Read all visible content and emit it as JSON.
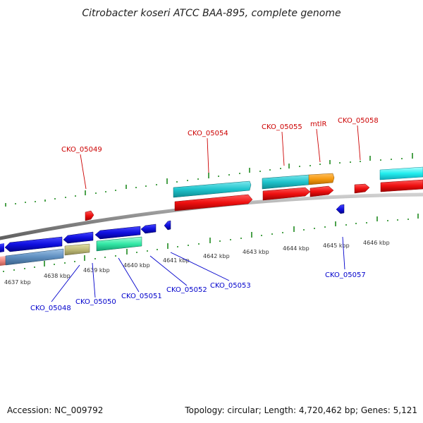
{
  "title": "Citrobacter koseri ATCC BAA-895, complete genome",
  "footer": {
    "accession": "Accession: NC_009792",
    "topology": "Topology: circular; Length: 4,720,462 bp; Genes: 5,121"
  },
  "colors": {
    "backbone": "#8a8a8a",
    "tick": "#1f8a1f",
    "top_label": "#cc0000",
    "bottom_label": "#0000cc",
    "leader_top": "#cc0000",
    "leader_bottom": "#0000cc"
  },
  "kbp_labels": [
    "4637 kbp",
    "4638 kbp",
    "4639 kbp",
    "4640 kbp",
    "4641 kbp",
    "4642 kbp",
    "4643 kbp",
    "4644 kbp",
    "4645 kbp",
    "4646 kbp"
  ],
  "top_labels": [
    "CKO_05049",
    "CKO_05054",
    "CKO_05055",
    "mtlR",
    "CKO_05058"
  ],
  "bottom_labels": [
    "CKO_05048",
    "CKO_05050",
    "CKO_05051",
    "CKO_05052",
    "CKO_05053",
    "CKO_05057"
  ]
}
